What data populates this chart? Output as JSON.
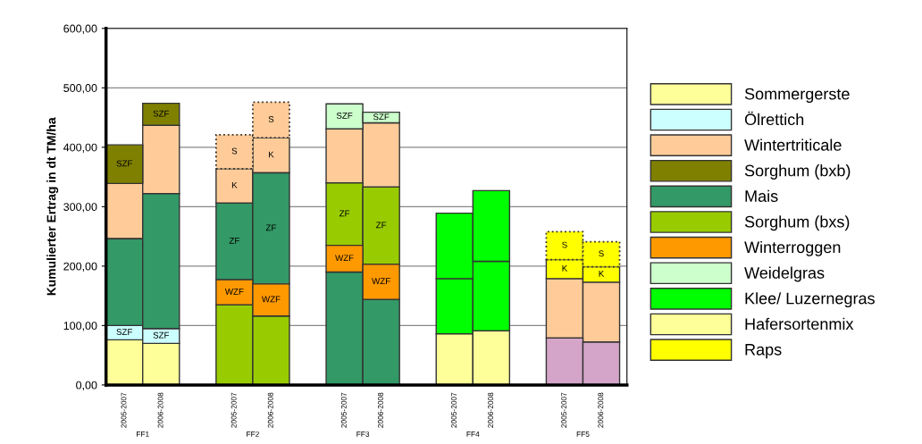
{
  "chart_data": {
    "type": "bar",
    "ylabel": "Kumulierter Ertrag in dt TM/ha",
    "categories": [
      "2005-2007",
      "2006-2008",
      "2005-2007",
      "2006-2008",
      "2005-2007",
      "2006-2008",
      "2005-2007",
      "2006-2008",
      "2005-2007",
      "2006-2008"
    ],
    "annotations": [
      "FF1",
      "FF2",
      "FF3",
      "FF4",
      "FF5"
    ],
    "ylim": [
      0,
      600
    ],
    "yticks": [
      {
        "value": 0,
        "label": "0,00"
      },
      {
        "value": 100,
        "label": "100,00"
      },
      {
        "value": 200,
        "label": "200,00"
      },
      {
        "value": 300,
        "label": "300,00"
      },
      {
        "value": 400,
        "label": "400,00"
      },
      {
        "value": 500,
        "label": "500,00"
      },
      {
        "value": 600,
        "label": "600,00"
      }
    ],
    "grid": "y",
    "legend": "right",
    "series": [
      {
        "name": "Sommergerste",
        "color": "#ffff99",
        "values": [
          76,
          70,
          null,
          null,
          null,
          null,
          null,
          null,
          null,
          null
        ],
        "base": [
          0,
          0,
          null,
          null,
          null,
          null,
          null,
          null,
          null,
          null
        ]
      },
      {
        "name": "Ölrettich",
        "color": "#ccffff",
        "values": [
          24,
          25,
          null,
          null,
          null,
          null,
          null,
          null,
          null,
          null
        ],
        "base": [
          76,
          70,
          null,
          null,
          null,
          null,
          null,
          null,
          null,
          null
        ],
        "value_labels": [
          "SZF",
          "SZF",
          null,
          null,
          null,
          null,
          null,
          null,
          null,
          null
        ]
      },
      {
        "name": "Wintertriticale",
        "color": "#ffcc99",
        "values": [
          93,
          115,
          58,
          59,
          91,
          108,
          null,
          null,
          100,
          101
        ],
        "base": [
          246,
          322,
          306,
          357,
          340,
          333,
          null,
          null,
          79,
          72
        ],
        "value_labels": [
          null,
          null,
          "K",
          "K",
          null,
          null,
          null,
          null,
          null,
          null
        ]
      },
      {
        "color": "#ffcc99",
        "line_style": "dotted",
        "values": [
          null,
          null,
          57,
          60,
          null,
          null,
          null,
          null,
          null,
          null
        ],
        "base": [
          null,
          null,
          364,
          416,
          null,
          null,
          null,
          null,
          null,
          null
        ],
        "value_labels": [
          null,
          null,
          "S",
          "S",
          null,
          null,
          null,
          null,
          null,
          null
        ]
      },
      {
        "name": "Sorghum (bxb)",
        "color": "#808000",
        "values": [
          65,
          37,
          null,
          null,
          null,
          null,
          null,
          null,
          null,
          null
        ],
        "base": [
          339,
          437,
          null,
          null,
          null,
          null,
          null,
          null,
          null,
          null
        ],
        "value_labels": [
          "SZF",
          "SZF",
          null,
          null,
          null,
          null,
          null,
          null,
          null,
          null
        ]
      },
      {
        "name": "Mais",
        "color": "#339966",
        "values": [
          146,
          227,
          129,
          187,
          190,
          144,
          null,
          null,
          null,
          null
        ],
        "base": [
          100,
          95,
          177,
          170,
          0,
          0,
          null,
          null,
          null,
          null
        ],
        "value_labels": [
          null,
          null,
          "ZF",
          "ZF",
          null,
          null,
          null,
          null,
          null,
          null
        ]
      },
      {
        "name": "Sorghum (bxs)",
        "color": "#99cc00",
        "values": [
          null,
          null,
          135,
          116,
          105,
          130,
          null,
          null,
          null,
          null
        ],
        "base": [
          null,
          null,
          0,
          0,
          235,
          203,
          null,
          null,
          null,
          null
        ],
        "value_labels": [
          null,
          null,
          null,
          null,
          "ZF",
          "ZF",
          null,
          null,
          null,
          null
        ]
      },
      {
        "name": "Winterroggen",
        "color": "#ff9900",
        "values": [
          null,
          null,
          42,
          54,
          45,
          59,
          null,
          null,
          null,
          null
        ],
        "base": [
          null,
          null,
          135,
          116,
          190,
          144,
          null,
          null,
          null,
          null
        ],
        "value_labels": [
          null,
          null,
          "WZF",
          "WZF",
          "WZF",
          "WZF",
          null,
          null,
          null,
          null
        ]
      },
      {
        "name": "Weidelgras",
        "color": "#ccffcc",
        "values": [
          null,
          null,
          null,
          null,
          42,
          18,
          null,
          null,
          null,
          null
        ],
        "base": [
          null,
          null,
          null,
          null,
          431,
          441,
          null,
          null,
          null,
          null
        ],
        "value_labels": [
          null,
          null,
          null,
          null,
          "SZF",
          "SZF",
          null,
          null,
          null,
          null
        ]
      },
      {
        "name": "Klee/ Luzernegras",
        "color": "#00ff00",
        "values": [
          null,
          null,
          null,
          null,
          null,
          null,
          93,
          117,
          null,
          null
        ],
        "base": [
          null,
          null,
          null,
          null,
          null,
          null,
          86,
          91,
          null,
          null
        ]
      },
      {
        "color": "#00ff00",
        "values": [
          null,
          null,
          null,
          null,
          null,
          null,
          110,
          119,
          null,
          null
        ],
        "base": [
          null,
          null,
          null,
          null,
          null,
          null,
          179,
          208,
          null,
          null
        ]
      },
      {
        "name": "Hafersortenmix",
        "color": "#ffff99",
        "values": [
          null,
          null,
          null,
          null,
          null,
          null,
          86,
          91,
          null,
          null
        ],
        "base": [
          null,
          null,
          null,
          null,
          null,
          null,
          0,
          0,
          null,
          null
        ]
      },
      {
        "name": "Raps",
        "color": "#ffff00",
        "values": [
          null,
          null,
          null,
          null,
          null,
          null,
          null,
          null,
          32,
          26
        ],
        "base": [
          null,
          null,
          null,
          null,
          null,
          null,
          null,
          null,
          179,
          173
        ],
        "value_labels": [
          null,
          null,
          null,
          null,
          null,
          null,
          null,
          null,
          "K",
          "K"
        ]
      },
      {
        "color": "#ffff00",
        "line_style": "dotted",
        "values": [
          null,
          null,
          null,
          null,
          null,
          null,
          null,
          null,
          47,
          42
        ],
        "base": [
          null,
          null,
          null,
          null,
          null,
          null,
          null,
          null,
          211,
          199
        ],
        "value_labels": [
          null,
          null,
          null,
          null,
          null,
          null,
          null,
          null,
          "S",
          "S"
        ]
      },
      {
        "color": "#d4a5c8",
        "values": [
          null,
          null,
          null,
          null,
          null,
          null,
          null,
          null,
          79,
          72
        ],
        "base": [
          null,
          null,
          null,
          null,
          null,
          null,
          null,
          null,
          0,
          0
        ]
      }
    ]
  }
}
